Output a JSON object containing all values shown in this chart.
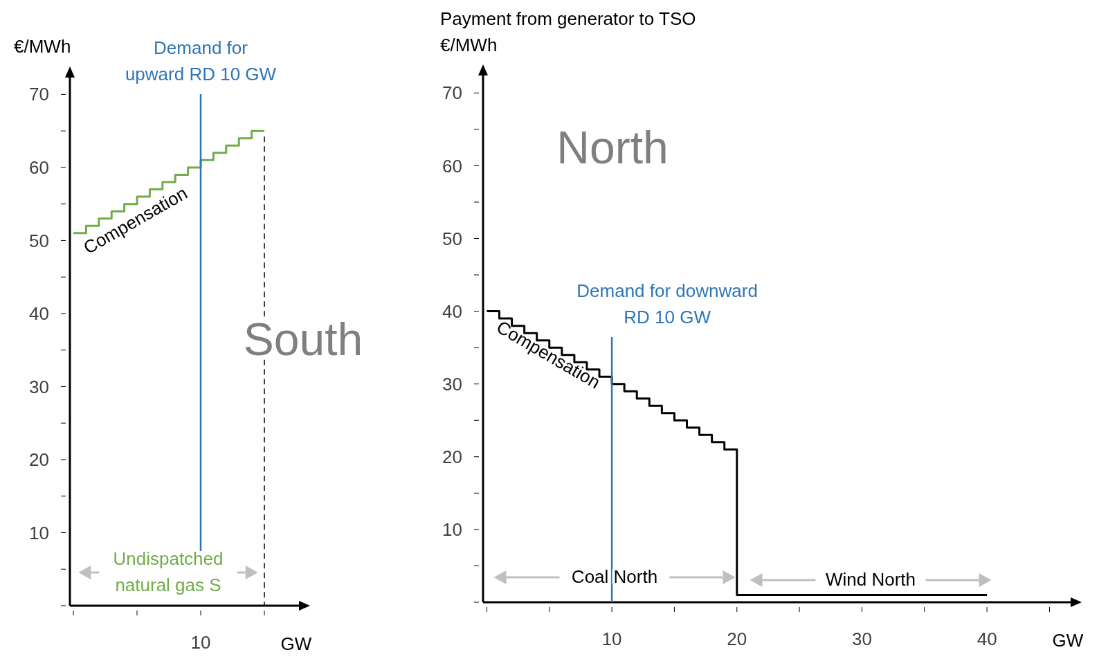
{
  "chart_data": [
    {
      "type": "step",
      "xlabel": "GW",
      "ylabel": "€/MWh",
      "ylim": [
        0,
        72.5
      ],
      "categories": [
        null,
        null,
        null,
        null,
        null,
        null,
        null,
        null,
        null,
        null,
        "10",
        null,
        null,
        null,
        null,
        null
      ],
      "yticks": [
        {
          "value": 0,
          "label": null
        },
        {
          "value": 5,
          "label": null
        },
        10,
        {
          "value": 15,
          "label": null
        },
        20,
        {
          "value": 25,
          "label": null
        },
        30,
        {
          "value": 35,
          "label": null
        },
        40,
        {
          "value": 45,
          "label": null
        },
        50,
        {
          "value": 55,
          "label": null
        },
        60,
        {
          "value": 65,
          "label": null
        },
        70
      ],
      "series": [
        {
          "color": "#70ad47",
          "values": [
            51,
            52,
            53,
            54,
            55,
            56,
            57,
            58,
            59,
            60,
            61,
            62,
            63,
            64,
            65,
            65
          ]
        }
      ],
      "ref_lines": [
        {
          "axis": "x",
          "value": "10",
          "label": "Demand for upward RD 10 GW",
          "color": "#2e75b6"
        }
      ],
      "annotations": [
        "Compensation",
        "Undispatched natural gas S",
        "South"
      ]
    },
    {
      "type": "step",
      "title": "Payment from generator to TSO",
      "xlabel": "GW",
      "ylabel": "€/MWh",
      "xlim": [
        -0.3,
        46.8
      ],
      "ylim": [
        0,
        72.6
      ],
      "xticks": [
        {
          "value": 0,
          "label": null
        },
        {
          "value": 5,
          "label": null
        },
        10,
        {
          "value": 15,
          "label": null
        },
        20,
        {
          "value": 25,
          "label": null
        },
        30,
        {
          "value": 35,
          "label": null
        },
        40,
        {
          "value": 45,
          "label": null
        }
      ],
      "yticks": [
        {
          "value": 0,
          "label": null
        },
        {
          "value": 5,
          "label": null
        },
        10,
        {
          "value": 15,
          "label": null
        },
        20,
        {
          "value": 25,
          "label": null
        },
        30,
        {
          "value": 35,
          "label": null
        },
        40,
        {
          "value": 45,
          "label": null
        },
        50,
        {
          "value": 55,
          "label": null
        },
        60,
        {
          "value": 65,
          "label": null
        },
        70
      ],
      "x": [
        0,
        1,
        2,
        3,
        4,
        5,
        6,
        7,
        8,
        9,
        10,
        11,
        12,
        13,
        14,
        15,
        16,
        17,
        18,
        19,
        20,
        40
      ],
      "series": [
        {
          "color": "#000000",
          "values": [
            40,
            39,
            38,
            37,
            36,
            35,
            34,
            33,
            32,
            31,
            30,
            29,
            28,
            27,
            26,
            25,
            24,
            23,
            22,
            21,
            1,
            1
          ]
        }
      ],
      "ref_lines": [
        {
          "axis": "x",
          "value": 10,
          "label": "Demand for downward RD 10 GW",
          "color": "#2e75b6"
        }
      ],
      "annotations": [
        "Compensation",
        "Coal North",
        "Wind North",
        "North"
      ]
    }
  ]
}
